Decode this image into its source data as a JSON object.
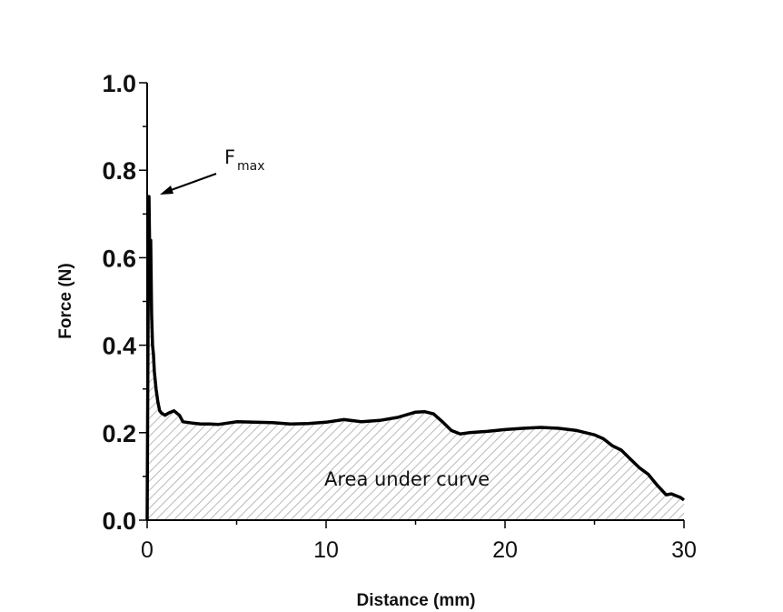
{
  "chart_data": {
    "type": "area",
    "xlabel": "Distance (mm)",
    "ylabel": "Force (N)",
    "xlim": [
      0,
      30
    ],
    "ylim": [
      0,
      1.0
    ],
    "x_ticks": [
      "0",
      "10",
      "20",
      "30"
    ],
    "y_ticks": [
      "0.0",
      "0.2",
      "0.4",
      "0.6",
      "0.8",
      "1.0"
    ],
    "grid": false,
    "line_color": "#000000",
    "fill_pattern": "diagonal-hatch-gray",
    "annotations": {
      "peak_label_main": "F",
      "peak_label_sub": "max",
      "area_label": "Area under curve"
    },
    "series": [
      {
        "x": [
          0,
          0.05,
          0.1,
          0.15,
          0.2,
          0.25,
          0.3,
          0.35,
          0.4,
          0.5,
          0.6,
          0.7,
          0.8,
          1.0,
          1.2,
          1.5,
          1.8,
          2.0,
          2.5,
          3.0,
          3.5,
          4.0,
          5.0,
          6.0,
          7.0,
          8.0,
          9.0,
          10.0,
          11.0,
          12.0,
          13.0,
          14.0,
          15.0,
          15.5,
          16.0,
          16.5,
          17.0,
          17.5,
          18.0,
          19.0,
          20.0,
          21.0,
          22.0,
          23.0,
          24.0,
          25.0,
          25.5,
          26.0,
          26.5,
          27.0,
          27.5,
          28.0,
          28.5,
          29.0,
          29.3,
          29.6,
          29.8,
          30.0
        ],
        "y": [
          0.0,
          0.45,
          0.74,
          0.58,
          0.64,
          0.47,
          0.4,
          0.38,
          0.34,
          0.3,
          0.27,
          0.25,
          0.245,
          0.24,
          0.245,
          0.25,
          0.24,
          0.225,
          0.222,
          0.22,
          0.22,
          0.219,
          0.225,
          0.224,
          0.223,
          0.22,
          0.221,
          0.224,
          0.23,
          0.225,
          0.228,
          0.235,
          0.247,
          0.248,
          0.243,
          0.225,
          0.205,
          0.197,
          0.2,
          0.203,
          0.207,
          0.21,
          0.212,
          0.21,
          0.205,
          0.195,
          0.186,
          0.17,
          0.16,
          0.14,
          0.12,
          0.105,
          0.08,
          0.058,
          0.06,
          0.055,
          0.052,
          0.046
        ]
      }
    ]
  }
}
